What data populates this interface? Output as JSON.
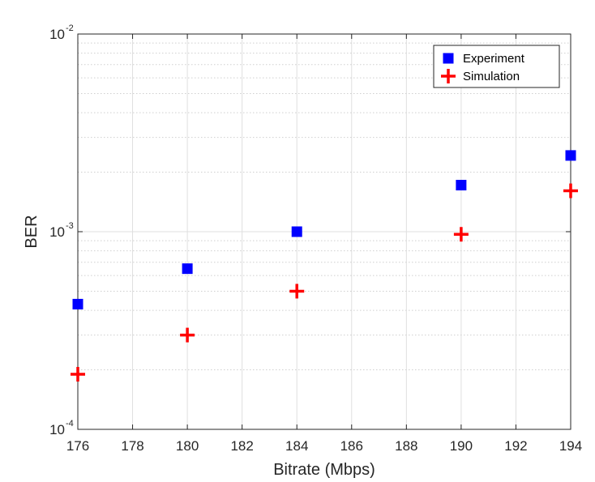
{
  "chart_data": {
    "type": "scatter",
    "xlabel": "Bitrate (Mbps)",
    "ylabel": "BER",
    "xlim": [
      176,
      194
    ],
    "ylim": [
      0.0001,
      0.01
    ],
    "yscale": "log",
    "grid": true,
    "legend_position": "top-right",
    "x_ticks": [
      "176",
      "178",
      "180",
      "182",
      "184",
      "186",
      "188",
      "190",
      "192",
      "194"
    ],
    "y_ticks": [
      {
        "value": 0.0001,
        "base": "10",
        "exp": "-4"
      },
      {
        "value": 0.001,
        "base": "10",
        "exp": "-3"
      },
      {
        "value": 0.01,
        "base": "10",
        "exp": "-2"
      }
    ],
    "series": [
      {
        "name": "Experiment",
        "marker": "square",
        "color": "#0000ff",
        "x": [
          176,
          180,
          184,
          190,
          194
        ],
        "y": [
          0.00043,
          0.00065,
          0.001,
          0.00172,
          0.00243
        ]
      },
      {
        "name": "Simulation",
        "marker": "plus",
        "color": "#ff0000",
        "x": [
          176,
          180,
          184,
          190,
          194
        ],
        "y": [
          0.00019,
          0.0003,
          0.0005,
          0.00097,
          0.00161
        ]
      }
    ]
  }
}
